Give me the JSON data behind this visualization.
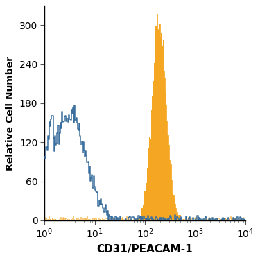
{
  "xlabel": "CD31/PEACAM-1",
  "ylabel": "Relative Cell Number",
  "xlim_log": [
    1.0,
    10000.0
  ],
  "ylim": [
    0,
    330
  ],
  "yticks": [
    0,
    60,
    120,
    180,
    240,
    300
  ],
  "blue_color": "#3a6f9e",
  "orange_color": "#f5a623",
  "background_color": "#ffffff",
  "xlabel_fontsize": 11,
  "ylabel_fontsize": 10,
  "tick_fontsize": 10,
  "figsize": [
    3.75,
    3.75
  ],
  "dpi": 100
}
